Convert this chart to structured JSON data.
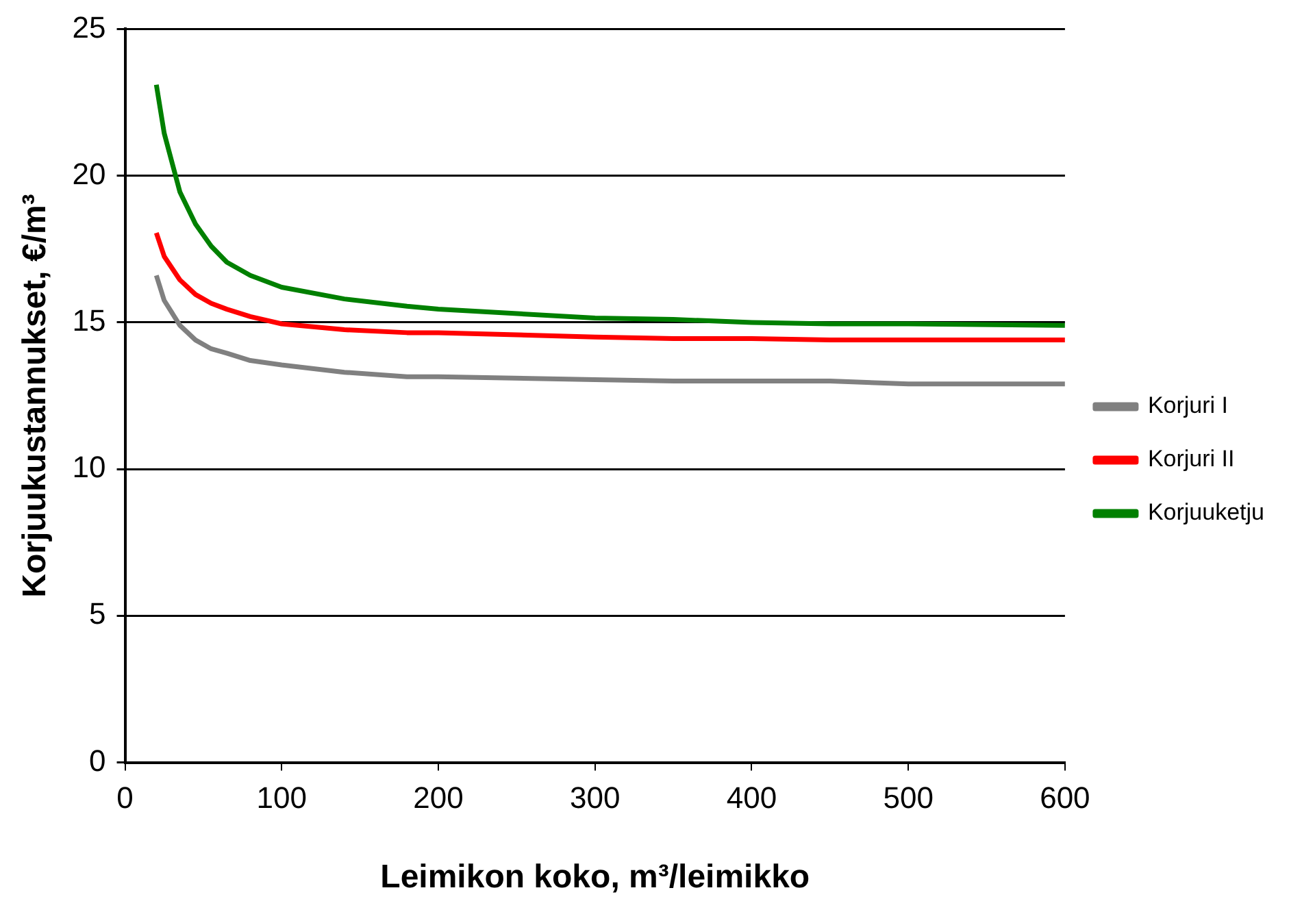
{
  "chart_data": {
    "type": "line",
    "xlabel": "Leimikon koko, m³/leimikko",
    "ylabel": "Korjuukustannukset, €/m³",
    "x": [
      20,
      25,
      35,
      45,
      55,
      65,
      80,
      100,
      140,
      180,
      200,
      300,
      350,
      400,
      450,
      500,
      600
    ],
    "series": [
      {
        "name": "Korjuri I",
        "color": "#808080",
        "values": [
          16.6,
          15.75,
          14.9,
          14.4,
          14.1,
          13.95,
          13.7,
          13.55,
          13.3,
          13.15,
          13.15,
          13.05,
          13.0,
          13.0,
          13.0,
          12.9,
          12.9
        ]
      },
      {
        "name": "Korjuri II",
        "color": "#ff0000",
        "values": [
          18.05,
          17.25,
          16.45,
          15.95,
          15.65,
          15.45,
          15.2,
          14.95,
          14.75,
          14.65,
          14.65,
          14.5,
          14.45,
          14.45,
          14.4,
          14.4,
          14.4
        ]
      },
      {
        "name": "Korjuuketju",
        "color": "#008000",
        "values": [
          23.1,
          21.45,
          19.45,
          18.35,
          17.6,
          17.05,
          16.6,
          16.2,
          15.8,
          15.55,
          15.45,
          15.15,
          15.1,
          15.0,
          14.95,
          14.95,
          14.9
        ]
      }
    ],
    "xlim": [
      0,
      600
    ],
    "xticks": [
      0,
      100,
      200,
      300,
      400,
      500,
      600
    ],
    "ylim": [
      0,
      25
    ],
    "yticks": [
      0,
      5,
      10,
      15,
      20,
      25
    ],
    "grid": "y",
    "legend": "right",
    "marker": "none",
    "line_style": "solid"
  }
}
